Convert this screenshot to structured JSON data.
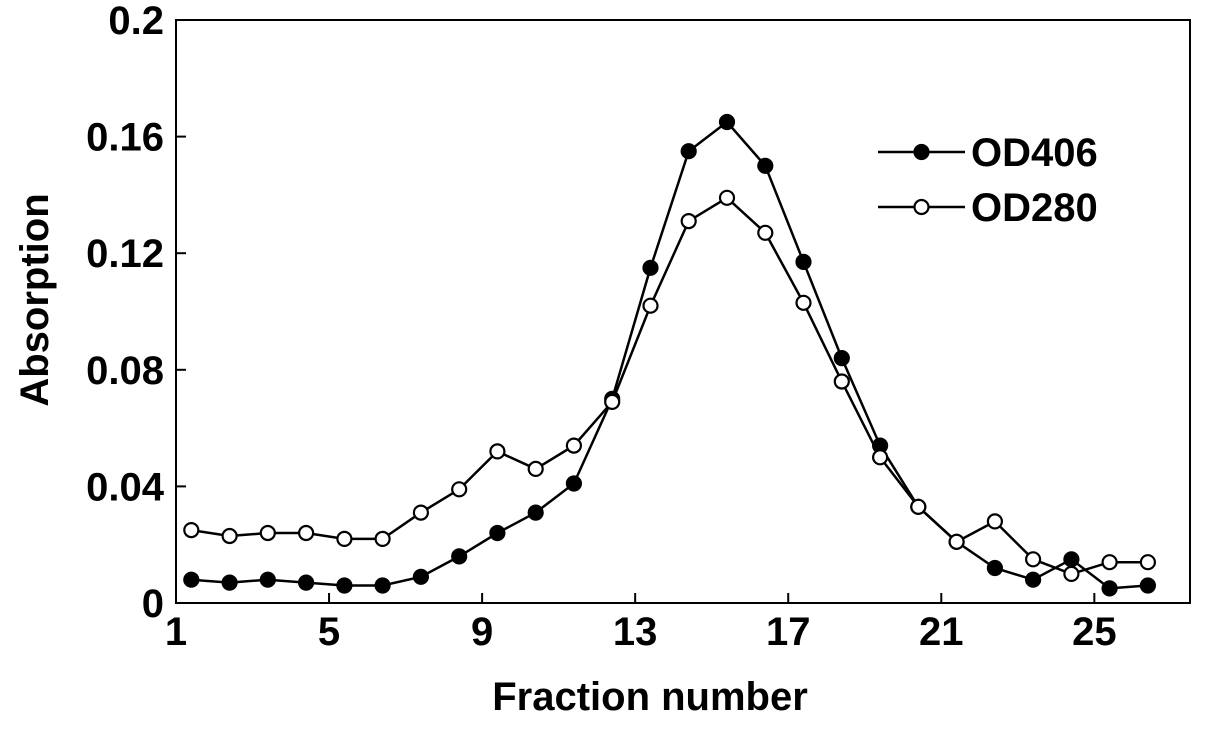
{
  "chart_data": {
    "type": "line",
    "xlabel": "Fraction number",
    "ylabel": "Absorption",
    "xlim": [
      1,
      27.5
    ],
    "ylim": [
      0,
      0.2
    ],
    "xticks": [
      1,
      5,
      9,
      13,
      17,
      21,
      25
    ],
    "yticks": [
      0,
      0.04,
      0.08,
      0.12,
      0.16,
      0.2
    ],
    "ytick_labels": [
      "0",
      "0.04",
      "0.08",
      "0.12",
      "0.16",
      "0.2"
    ],
    "xtick_labels": [
      "1",
      "5",
      "9",
      "13",
      "17",
      "21",
      "25"
    ],
    "grid": false,
    "legend_position": "top-right",
    "series": [
      {
        "name": "OD406",
        "marker": "filled-circle",
        "color": "#000000",
        "x": [
          1.4,
          2.4,
          3.4,
          4.4,
          5.4,
          6.4,
          7.4,
          8.4,
          9.4,
          10.4,
          11.4,
          12.4,
          13.4,
          14.4,
          15.4,
          16.4,
          17.4,
          18.4,
          19.4,
          20.4,
          21.4,
          22.4,
          23.4,
          24.4,
          25.4,
          26.4
        ],
        "values": [
          0.008,
          0.007,
          0.008,
          0.007,
          0.006,
          0.006,
          0.009,
          0.016,
          0.024,
          0.031,
          0.041,
          0.07,
          0.115,
          0.155,
          0.165,
          0.15,
          0.117,
          0.084,
          0.054,
          0.033,
          0.021,
          0.012,
          0.008,
          0.015,
          0.005,
          0.006
        ]
      },
      {
        "name": "OD280",
        "marker": "open-circle",
        "color": "#000000",
        "x": [
          1.4,
          2.4,
          3.4,
          4.4,
          5.4,
          6.4,
          7.4,
          8.4,
          9.4,
          10.4,
          11.4,
          12.4,
          13.4,
          14.4,
          15.4,
          16.4,
          17.4,
          18.4,
          19.4,
          20.4,
          21.4,
          22.4,
          23.4,
          24.4,
          25.4,
          26.4
        ],
        "values": [
          0.025,
          0.023,
          0.024,
          0.024,
          0.022,
          0.022,
          0.031,
          0.039,
          0.052,
          0.046,
          0.054,
          0.069,
          0.102,
          0.131,
          0.139,
          0.127,
          0.103,
          0.076,
          0.05,
          0.033,
          0.021,
          0.028,
          0.015,
          0.01,
          0.014,
          0.014
        ]
      }
    ]
  }
}
